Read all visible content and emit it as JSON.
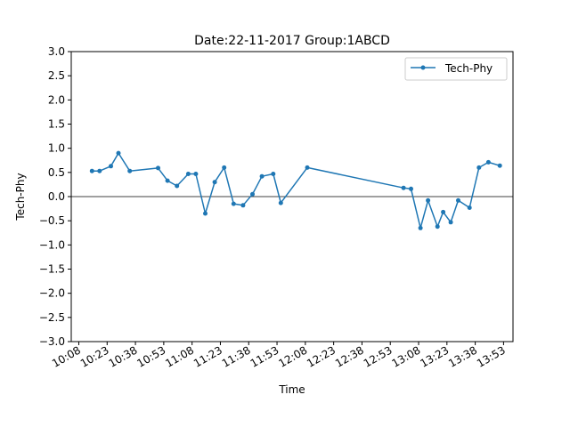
{
  "chart_data": {
    "type": "line",
    "title": "Date:22-11-2017 Group:1ABCD",
    "xlabel": "Time",
    "ylabel": "Tech-Phy",
    "x_ticks": [
      "10:08",
      "10:23",
      "10:38",
      "10:53",
      "11:08",
      "11:23",
      "11:38",
      "11:53",
      "12:08",
      "12:23",
      "12:38",
      "12:53",
      "13:08",
      "13:23",
      "13:38",
      "13:53"
    ],
    "y_ticks": [
      "3.0",
      "2.5",
      "2.0",
      "1.5",
      "1.0",
      "0.5",
      "0.0",
      "−0.5",
      "−1.0",
      "−1.5",
      "−2.0",
      "−2.5",
      "−3.0"
    ],
    "xlim": [
      "10:04",
      "13:58"
    ],
    "ylim": [
      -3.0,
      3.0
    ],
    "grid": false,
    "zero_line": true,
    "legend_position": "top-right",
    "series": [
      {
        "name": "Tech-Phy",
        "color": "#1f77b4",
        "marker": "circle",
        "x": [
          "10:15",
          "10:19",
          "10:25",
          "10:29",
          "10:35",
          "10:50",
          "10:55",
          "11:00",
          "11:06",
          "11:10",
          "11:15",
          "11:20",
          "11:25",
          "11:30",
          "11:35",
          "11:40",
          "11:45",
          "11:51",
          "11:55",
          "12:09",
          "13:00",
          "13:04",
          "13:09",
          "13:13",
          "13:18",
          "13:21",
          "13:25",
          "13:29",
          "13:35",
          "13:40",
          "13:45",
          "13:51"
        ],
        "values": [
          0.53,
          0.53,
          0.63,
          0.9,
          0.53,
          0.59,
          0.33,
          0.22,
          0.47,
          0.47,
          -0.35,
          0.3,
          0.6,
          -0.15,
          -0.18,
          0.05,
          0.42,
          0.47,
          -0.13,
          0.6,
          0.18,
          0.16,
          -0.65,
          -0.08,
          -0.62,
          -0.32,
          -0.53,
          -0.08,
          -0.23,
          0.6,
          0.71,
          0.64
        ]
      }
    ]
  }
}
